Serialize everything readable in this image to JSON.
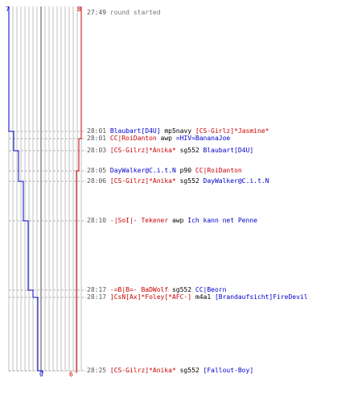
{
  "scores": {
    "blue_start": "7",
    "red_start": "8",
    "blue_end": "0",
    "red_end": "6"
  },
  "colors": {
    "blue": "#0000cc",
    "red": "#cc0000",
    "grid": "#c0c0c0",
    "grid_mid": "#888888",
    "dash": "#b0b0b0",
    "text": "#000000",
    "time": "#555555"
  },
  "events": [
    {
      "time": "27:49",
      "parts": [
        {
          "text": "round started",
          "style": "g"
        }
      ]
    },
    {
      "time": "28:01",
      "parts": [
        {
          "text": "Blaubart[D4U]",
          "style": "b"
        },
        {
          "text": " mp5navy ",
          "style": "w"
        },
        {
          "text": "[CS-Girlz]*Jasmine*",
          "style": "r"
        }
      ]
    },
    {
      "time": "28:01",
      "parts": [
        {
          "text": "CC|RoiDanton",
          "style": "r"
        },
        {
          "text": " awp ",
          "style": "w"
        },
        {
          "text": "=HIV=BananaJoe",
          "style": "b"
        }
      ]
    },
    {
      "time": "28:03",
      "parts": [
        {
          "text": "[CS-Gilrz]*Anika*",
          "style": "r"
        },
        {
          "text": " sg552 ",
          "style": "w"
        },
        {
          "text": "Blaubart[D4U]",
          "style": "b"
        }
      ]
    },
    {
      "time": "28:05",
      "parts": [
        {
          "text": "DayWalker@C.i.t.N",
          "style": "b"
        },
        {
          "text": " p90 ",
          "style": "w"
        },
        {
          "text": "CC|RoiDanton",
          "style": "r"
        }
      ]
    },
    {
      "time": "28:06",
      "parts": [
        {
          "text": "[CS-Gilrz]*Anika*",
          "style": "r"
        },
        {
          "text": " sg552 ",
          "style": "w"
        },
        {
          "text": "DayWalker@C.i.t.N",
          "style": "b"
        }
      ]
    },
    {
      "time": "28:10",
      "parts": [
        {
          "text": "-|SoI|- Tekener",
          "style": "r"
        },
        {
          "text": " awp ",
          "style": "w"
        },
        {
          "text": "Ich kann net Penne",
          "style": "b"
        }
      ]
    },
    {
      "time": "28:17",
      "parts": [
        {
          "text": "-=B|B=- BaDWolf",
          "style": "r"
        },
        {
          "text": " sg552 ",
          "style": "w"
        },
        {
          "text": "CC|Beorn",
          "style": "b"
        }
      ]
    },
    {
      "time": "28:17",
      "parts": [
        {
          "text": "]CsN[Ax]*Foley[*AFC-]",
          "style": "r"
        },
        {
          "text": " m4a1 ",
          "style": "w"
        },
        {
          "text": "[Brandaufsicht]FireDevil",
          "style": "b"
        }
      ]
    },
    {
      "time": "28:25",
      "parts": [
        {
          "text": "[CS-Gilrz]*Anika*",
          "style": "r"
        },
        {
          "text": " sg552 ",
          "style": "w"
        },
        {
          "text": "[Fallout-Boy]",
          "style": "b"
        }
      ]
    }
  ],
  "chart_data": {
    "type": "line",
    "x": [
      "27:49",
      "28:01",
      "28:01",
      "28:03",
      "28:05",
      "28:06",
      "28:10",
      "28:17",
      "28:17",
      "28:25"
    ],
    "series": [
      {
        "values": [
          7,
          6,
          6,
          5,
          5,
          4,
          3,
          2,
          1,
          0
        ]
      },
      {
        "values": [
          8,
          8,
          7,
          7,
          6,
          6,
          6,
          6,
          6,
          6
        ]
      }
    ],
    "ylim": [
      0,
      8
    ]
  }
}
